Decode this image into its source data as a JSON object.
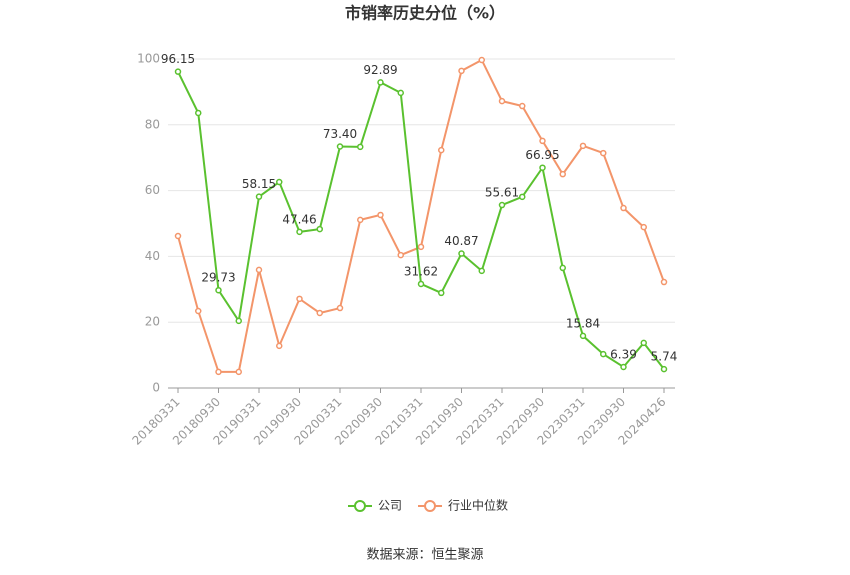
{
  "chart_data": {
    "type": "line",
    "title": "市销率历史分位（%）",
    "source": "数据来源：恒生聚源",
    "categories": [
      "20180331",
      null,
      "20180930",
      null,
      "20190331",
      null,
      "20190930",
      null,
      "20200331",
      null,
      "20200930",
      null,
      "20210331",
      null,
      "20210930",
      null,
      "20220331",
      null,
      "20220930",
      null,
      "20230331",
      null,
      "20230930",
      null,
      "20240426"
    ],
    "series": [
      {
        "name": "公司",
        "color": "#5ac12f",
        "values": [
          96.15,
          83.6,
          29.73,
          20.4,
          58.15,
          62.6,
          47.46,
          48.3,
          73.4,
          73.3,
          92.89,
          89.7,
          31.62,
          28.9,
          40.87,
          35.6,
          55.61,
          58.1,
          66.95,
          36.5,
          15.84,
          10.3,
          6.39,
          13.7,
          5.74
        ],
        "value_labels": [
          "96.15",
          null,
          "29.73",
          null,
          "58.15",
          null,
          "47.46",
          null,
          "73.40",
          null,
          "92.89",
          null,
          "31.62",
          null,
          "40.87",
          null,
          "55.61",
          null,
          "66.95",
          null,
          "15.84",
          null,
          "6.39",
          null,
          "5.74"
        ]
      },
      {
        "name": "行业中位数",
        "color": "#f3956a",
        "values": [
          46.2,
          23.4,
          4.9,
          4.9,
          35.9,
          12.8,
          27.1,
          22.8,
          24.3,
          51.1,
          52.6,
          40.4,
          42.9,
          72.3,
          96.4,
          99.7,
          87.2,
          85.7,
          75.1,
          65.0,
          73.6,
          71.4,
          54.7,
          48.9,
          32.2
        ]
      }
    ],
    "ylim": [
      0,
      100
    ],
    "yticks": [
      0,
      20,
      40,
      60,
      80,
      100
    ],
    "grid": true,
    "legend": "bottom"
  }
}
